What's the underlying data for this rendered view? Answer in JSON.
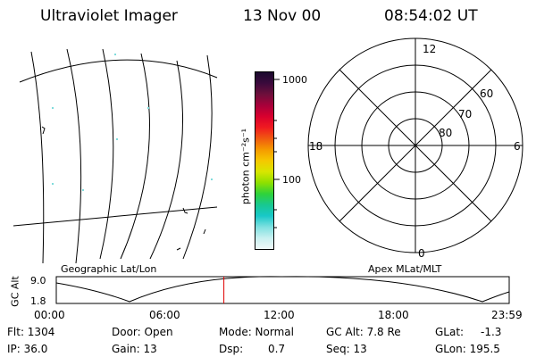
{
  "header": {
    "instrument": "Ultraviolet Imager",
    "date": "13 Nov 00",
    "time": "08:54:02 UT"
  },
  "colorbar": {
    "unit_label": "photon cm⁻²s⁻¹",
    "ticks": [
      "1000",
      "100"
    ],
    "colors": [
      "#1b0a2e",
      "#3b0a3c",
      "#6e0f3b",
      "#a8003a",
      "#d8002e",
      "#f01a20",
      "#f05a10",
      "#f59a00",
      "#f5c800",
      "#d8e600",
      "#8fe000",
      "#2fd23a",
      "#18c890",
      "#18c8c8",
      "#7ee0e0",
      "#c8f0f0",
      "#f0f8f8"
    ]
  },
  "polar": {
    "hours": [
      "12",
      "18",
      "6",
      "0"
    ],
    "lats": [
      "60",
      "70",
      "80"
    ]
  },
  "map_labels": {
    "left": "Geographic Lat/Lon",
    "right": "Apex MLat/MLT"
  },
  "timeline": {
    "axis_label": "GC Alt",
    "y_ticks": [
      "9.0",
      "1.8"
    ],
    "x_ticks": [
      "00:00",
      "06:00",
      "12:00",
      "18:00",
      "23:59"
    ],
    "current_fraction": 0.37,
    "marker_color": "#e00000"
  },
  "info": {
    "flt": "Flt: 1304",
    "ip": "IP: 36.0",
    "door": "Door: Open",
    "gain": "Gain: 13",
    "mode": "Mode: Normal",
    "dsp_label": "Dsp:",
    "dsp_value": "0.7",
    "gcalt": "GC Alt: 7.8 Re",
    "seq": "Seq: 13",
    "glat_label": "GLat:",
    "glat_value": "-1.3",
    "glon": "GLon: 195.5"
  }
}
